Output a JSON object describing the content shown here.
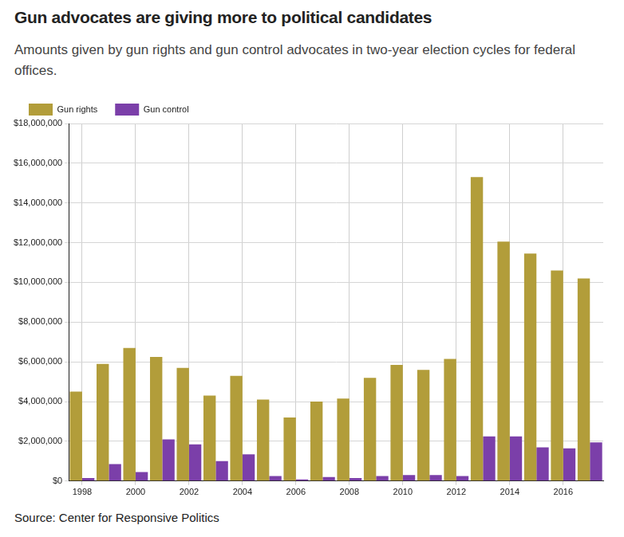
{
  "chart_data": {
    "type": "bar",
    "title": "Gun advocates are giving more to political candidates",
    "subtitle": "Amounts given by gun rights and gun control advocates in two-year election cycles for federal offices.",
    "source": "Source: Center for Responsive Politics",
    "categories": [
      "1998",
      null,
      "2000",
      null,
      "2002",
      null,
      "2004",
      null,
      "2006",
      null,
      "2008",
      null,
      "2010",
      null,
      "2012",
      null,
      "2014",
      null,
      "2016",
      null
    ],
    "series": [
      {
        "name": "Gun rights",
        "color": "#b29d3a",
        "values": [
          4500000,
          5900000,
          6700000,
          6250000,
          5700000,
          4300000,
          5300000,
          4100000,
          3200000,
          4000000,
          4150000,
          5200000,
          5850000,
          5600000,
          6150000,
          15300000,
          12050000,
          11450000,
          10600000,
          10200000
        ]
      },
      {
        "name": "Gun control",
        "color": "#7b3fa9",
        "values": [
          150000,
          850000,
          450000,
          2100000,
          1850000,
          1000000,
          1350000,
          250000,
          80000,
          200000,
          150000,
          250000,
          300000,
          300000,
          250000,
          2250000,
          2250000,
          1700000,
          1650000,
          1950000
        ]
      }
    ],
    "ylim": [
      0,
      18000000
    ],
    "yticks": [
      {
        "value": 0,
        "label": "$0"
      },
      {
        "value": 2000000,
        "label": "$2,000,000"
      },
      {
        "value": 4000000,
        "label": "$4,000,000"
      },
      {
        "value": 6000000,
        "label": "$6,000,000"
      },
      {
        "value": 8000000,
        "label": "$8,000,000"
      },
      {
        "value": 10000000,
        "label": "$10,000,000"
      },
      {
        "value": 12000000,
        "label": "$12,000,000"
      },
      {
        "value": 14000000,
        "label": "$14,000,000"
      },
      {
        "value": 16000000,
        "label": "$16,000,000"
      },
      {
        "value": 18000000,
        "label": "$18,000,000"
      }
    ],
    "grid": true,
    "legend": "top-left"
  }
}
